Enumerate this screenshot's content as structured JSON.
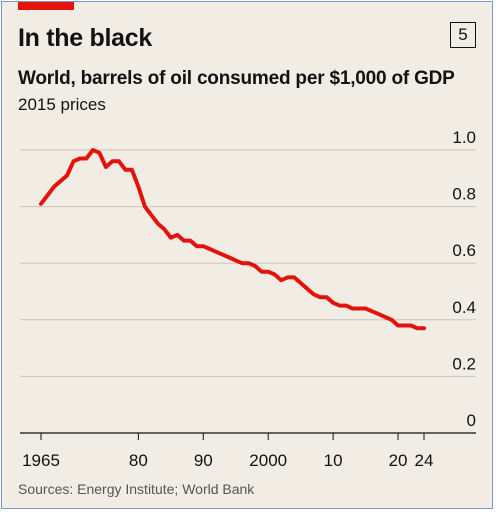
{
  "header": {
    "title": "In the black",
    "badge": "5",
    "subtitle": "World, barrels of oil consumed per $1,000 of GDP",
    "units": "2015 prices"
  },
  "footer": {
    "source": "Sources: Energy Institute; World Bank"
  },
  "colors": {
    "background": "#f1ede4",
    "accent": "#e3120b",
    "line": "#e3120b",
    "text": "#121212",
    "grid": "#c9c5bd"
  },
  "chart_data": {
    "type": "line",
    "title": "World, barrels of oil consumed per $1,000 of GDP",
    "subtitle": "2015 prices",
    "xlabel": "",
    "ylabel": "",
    "xlim": [
      1965,
      2024
    ],
    "ylim": [
      0,
      1.0
    ],
    "y_ticks": [
      {
        "value": 0,
        "label": "0"
      },
      {
        "value": 0.2,
        "label": "0.2"
      },
      {
        "value": 0.4,
        "label": "0.4"
      },
      {
        "value": 0.6,
        "label": "0.6"
      },
      {
        "value": 0.8,
        "label": "0.8"
      },
      {
        "value": 1.0,
        "label": "1.0"
      }
    ],
    "x_ticks": [
      {
        "value": 1965,
        "label": "1965"
      },
      {
        "value": 1980,
        "label": "80"
      },
      {
        "value": 1990,
        "label": "90"
      },
      {
        "value": 2000,
        "label": "2000"
      },
      {
        "value": 2010,
        "label": "10"
      },
      {
        "value": 2020,
        "label": "20"
      },
      {
        "value": 2024,
        "label": "24"
      }
    ],
    "grid": true,
    "y_axis_position": "right",
    "series": [
      {
        "x": [
          1965,
          1966,
          1967,
          1968,
          1969,
          1970,
          1971,
          1972,
          1973,
          1974,
          1975,
          1976,
          1977,
          1978,
          1979,
          1980,
          1981,
          1982,
          1983,
          1984,
          1985,
          1986,
          1987,
          1988,
          1989,
          1990,
          1991,
          1992,
          1993,
          1994,
          1995,
          1996,
          1997,
          1998,
          1999,
          2000,
          2001,
          2002,
          2003,
          2004,
          2005,
          2006,
          2007,
          2008,
          2009,
          2010,
          2011,
          2012,
          2013,
          2014,
          2015,
          2016,
          2017,
          2018,
          2019,
          2020,
          2021,
          2022,
          2023,
          2024
        ],
        "y": [
          0.81,
          0.84,
          0.87,
          0.89,
          0.91,
          0.96,
          0.97,
          0.97,
          1.0,
          0.99,
          0.94,
          0.96,
          0.96,
          0.93,
          0.93,
          0.87,
          0.8,
          0.77,
          0.74,
          0.72,
          0.69,
          0.7,
          0.68,
          0.68,
          0.66,
          0.66,
          0.65,
          0.64,
          0.63,
          0.62,
          0.61,
          0.6,
          0.6,
          0.59,
          0.57,
          0.57,
          0.56,
          0.54,
          0.55,
          0.55,
          0.53,
          0.51,
          0.49,
          0.48,
          0.48,
          0.46,
          0.45,
          0.45,
          0.44,
          0.44,
          0.44,
          0.43,
          0.42,
          0.41,
          0.4,
          0.38,
          0.38,
          0.38,
          0.37,
          0.37
        ]
      }
    ]
  }
}
